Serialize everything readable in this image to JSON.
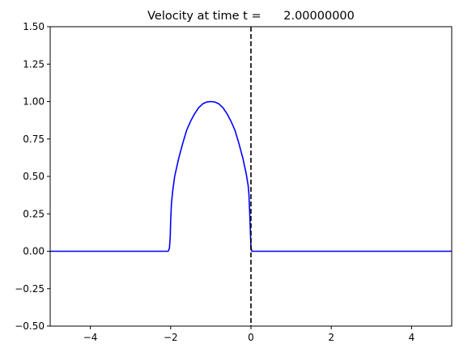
{
  "chart_data": {
    "type": "line",
    "title": "Velocity at time t =      2.00000000",
    "xlabel": "",
    "ylabel": "",
    "xlim": [
      -5,
      5
    ],
    "ylim": [
      -0.5,
      1.5
    ],
    "x_ticks": [
      -4,
      -2,
      0,
      2,
      4
    ],
    "x_tick_labels": [
      "−4",
      "−2",
      "0",
      "2",
      "4"
    ],
    "y_ticks": [
      -0.5,
      -0.25,
      0.0,
      0.25,
      0.5,
      0.75,
      1.0,
      1.25,
      1.5
    ],
    "y_tick_labels": [
      "−0.50",
      "−0.25",
      "0.00",
      "0.25",
      "0.50",
      "0.75",
      "1.00",
      "1.25",
      "1.50"
    ],
    "grid": false,
    "series": [
      {
        "color": "#0000ff",
        "points": [
          [
            -5.0,
            0.0
          ],
          [
            -2.06,
            0.0
          ],
          [
            -2.03,
            0.02
          ],
          [
            -2.01,
            0.1
          ],
          [
            -2.0,
            0.2
          ],
          [
            -1.98,
            0.32
          ],
          [
            -1.95,
            0.4
          ],
          [
            -1.9,
            0.5
          ],
          [
            -1.8,
            0.62
          ],
          [
            -1.7,
            0.72
          ],
          [
            -1.6,
            0.81
          ],
          [
            -1.5,
            0.87
          ],
          [
            -1.4,
            0.92
          ],
          [
            -1.3,
            0.96
          ],
          [
            -1.2,
            0.985
          ],
          [
            -1.1,
            0.997
          ],
          [
            -1.0,
            1.0
          ],
          [
            -0.9,
            0.997
          ],
          [
            -0.8,
            0.985
          ],
          [
            -0.7,
            0.96
          ],
          [
            -0.6,
            0.92
          ],
          [
            -0.5,
            0.87
          ],
          [
            -0.4,
            0.81
          ],
          [
            -0.3,
            0.72
          ],
          [
            -0.2,
            0.62
          ],
          [
            -0.12,
            0.52
          ],
          [
            -0.07,
            0.44
          ],
          [
            -0.05,
            0.38
          ],
          [
            -0.03,
            0.25
          ],
          [
            -0.01,
            0.1
          ],
          [
            0.0,
            0.03
          ],
          [
            0.02,
            0.0
          ],
          [
            5.0,
            0.0
          ]
        ]
      }
    ],
    "reference_line": {
      "x": 0,
      "color": "#000000",
      "style": "dashed"
    }
  }
}
